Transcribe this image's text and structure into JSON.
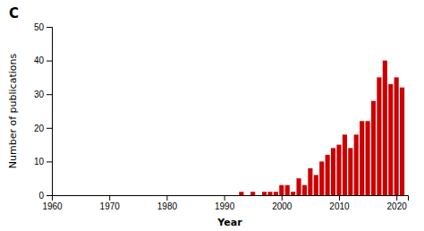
{
  "chart_data": {
    "type": "bar",
    "title": "C",
    "x_label": "Year",
    "y_label": "Number of publications",
    "x": [
      1993,
      1994,
      1995,
      1996,
      1997,
      1998,
      1999,
      2000,
      2001,
      2002,
      2003,
      2004,
      2005,
      2006,
      2007,
      2008,
      2009,
      2010,
      2011,
      2012,
      2013,
      2014,
      2015,
      2016,
      2017,
      2018,
      2019,
      2020,
      2021
    ],
    "values": [
      1,
      0,
      1,
      0,
      1,
      1,
      1,
      3,
      3,
      1,
      5,
      3,
      8,
      6,
      10,
      12,
      14,
      15,
      18,
      14,
      18,
      22,
      22,
      28,
      35,
      40,
      33,
      35,
      32
    ],
    "color": "#cc0000",
    "xlim": [
      1960,
      2022
    ],
    "ylim": [
      0,
      50
    ],
    "xticks": [
      1960,
      1970,
      1980,
      1990,
      2000,
      2010,
      2020
    ],
    "yticks": [
      0,
      10,
      20,
      30,
      40,
      50
    ]
  }
}
